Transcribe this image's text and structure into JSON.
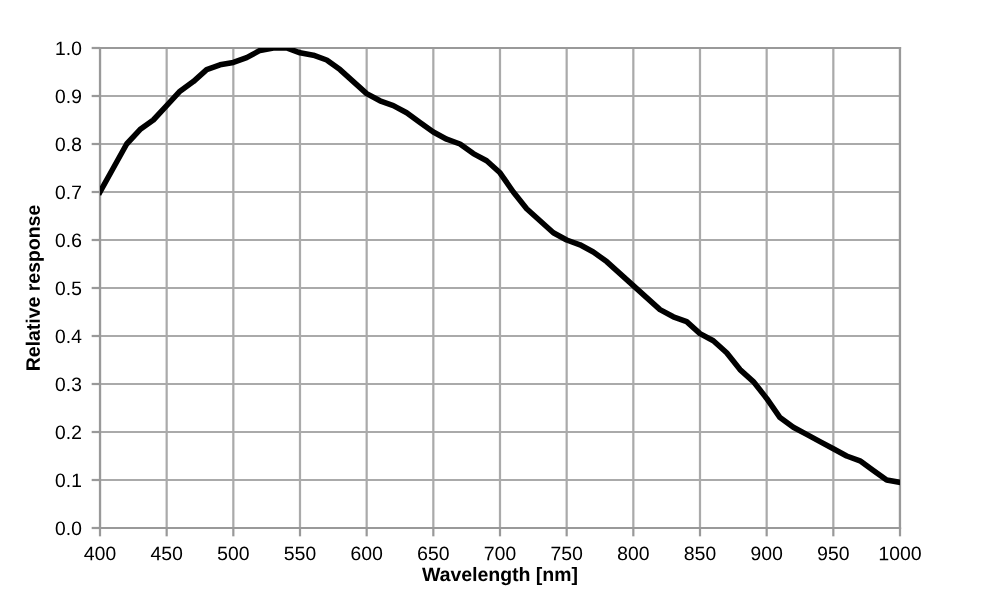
{
  "chart_data": {
    "type": "line",
    "xlabel": "Wavelength [nm]",
    "ylabel": "Relative response",
    "xlim": [
      400,
      1000
    ],
    "ylim": [
      0,
      1.0
    ],
    "xticks": [
      400,
      450,
      500,
      550,
      600,
      650,
      700,
      750,
      800,
      850,
      900,
      950,
      1000
    ],
    "yticks": [
      {
        "value": 0,
        "label": "0.0"
      },
      0.1,
      0.2,
      0.3,
      0.4,
      0.5,
      0.6,
      0.7,
      0.8,
      0.9,
      {
        "value": 1.0,
        "label": "1.0"
      }
    ],
    "grid": true,
    "marker": "none",
    "line_style": "solid",
    "series": [
      {
        "color": "#000000",
        "x": [
          400,
          410,
          420,
          430,
          440,
          450,
          460,
          470,
          480,
          490,
          500,
          510,
          520,
          530,
          540,
          550,
          560,
          570,
          580,
          590,
          600,
          610,
          620,
          630,
          640,
          650,
          660,
          670,
          680,
          690,
          700,
          710,
          720,
          730,
          740,
          750,
          760,
          770,
          780,
          790,
          800,
          810,
          820,
          830,
          840,
          850,
          860,
          870,
          880,
          890,
          900,
          910,
          920,
          930,
          940,
          950,
          960,
          970,
          980,
          990,
          1000
        ],
        "values": [
          0.7,
          0.75,
          0.8,
          0.83,
          0.85,
          0.88,
          0.91,
          0.93,
          0.955,
          0.965,
          0.97,
          0.98,
          0.995,
          1.0,
          1.0,
          0.99,
          0.985,
          0.975,
          0.955,
          0.93,
          0.905,
          0.89,
          0.88,
          0.865,
          0.845,
          0.825,
          0.81,
          0.8,
          0.78,
          0.765,
          0.74,
          0.7,
          0.665,
          0.64,
          0.615,
          0.6,
          0.59,
          0.575,
          0.555,
          0.53,
          0.505,
          0.48,
          0.455,
          0.44,
          0.43,
          0.405,
          0.39,
          0.365,
          0.33,
          0.305,
          0.27,
          0.23,
          0.21,
          0.195,
          0.18,
          0.165,
          0.15,
          0.14,
          0.12,
          0.1,
          0.095
        ]
      }
    ]
  }
}
